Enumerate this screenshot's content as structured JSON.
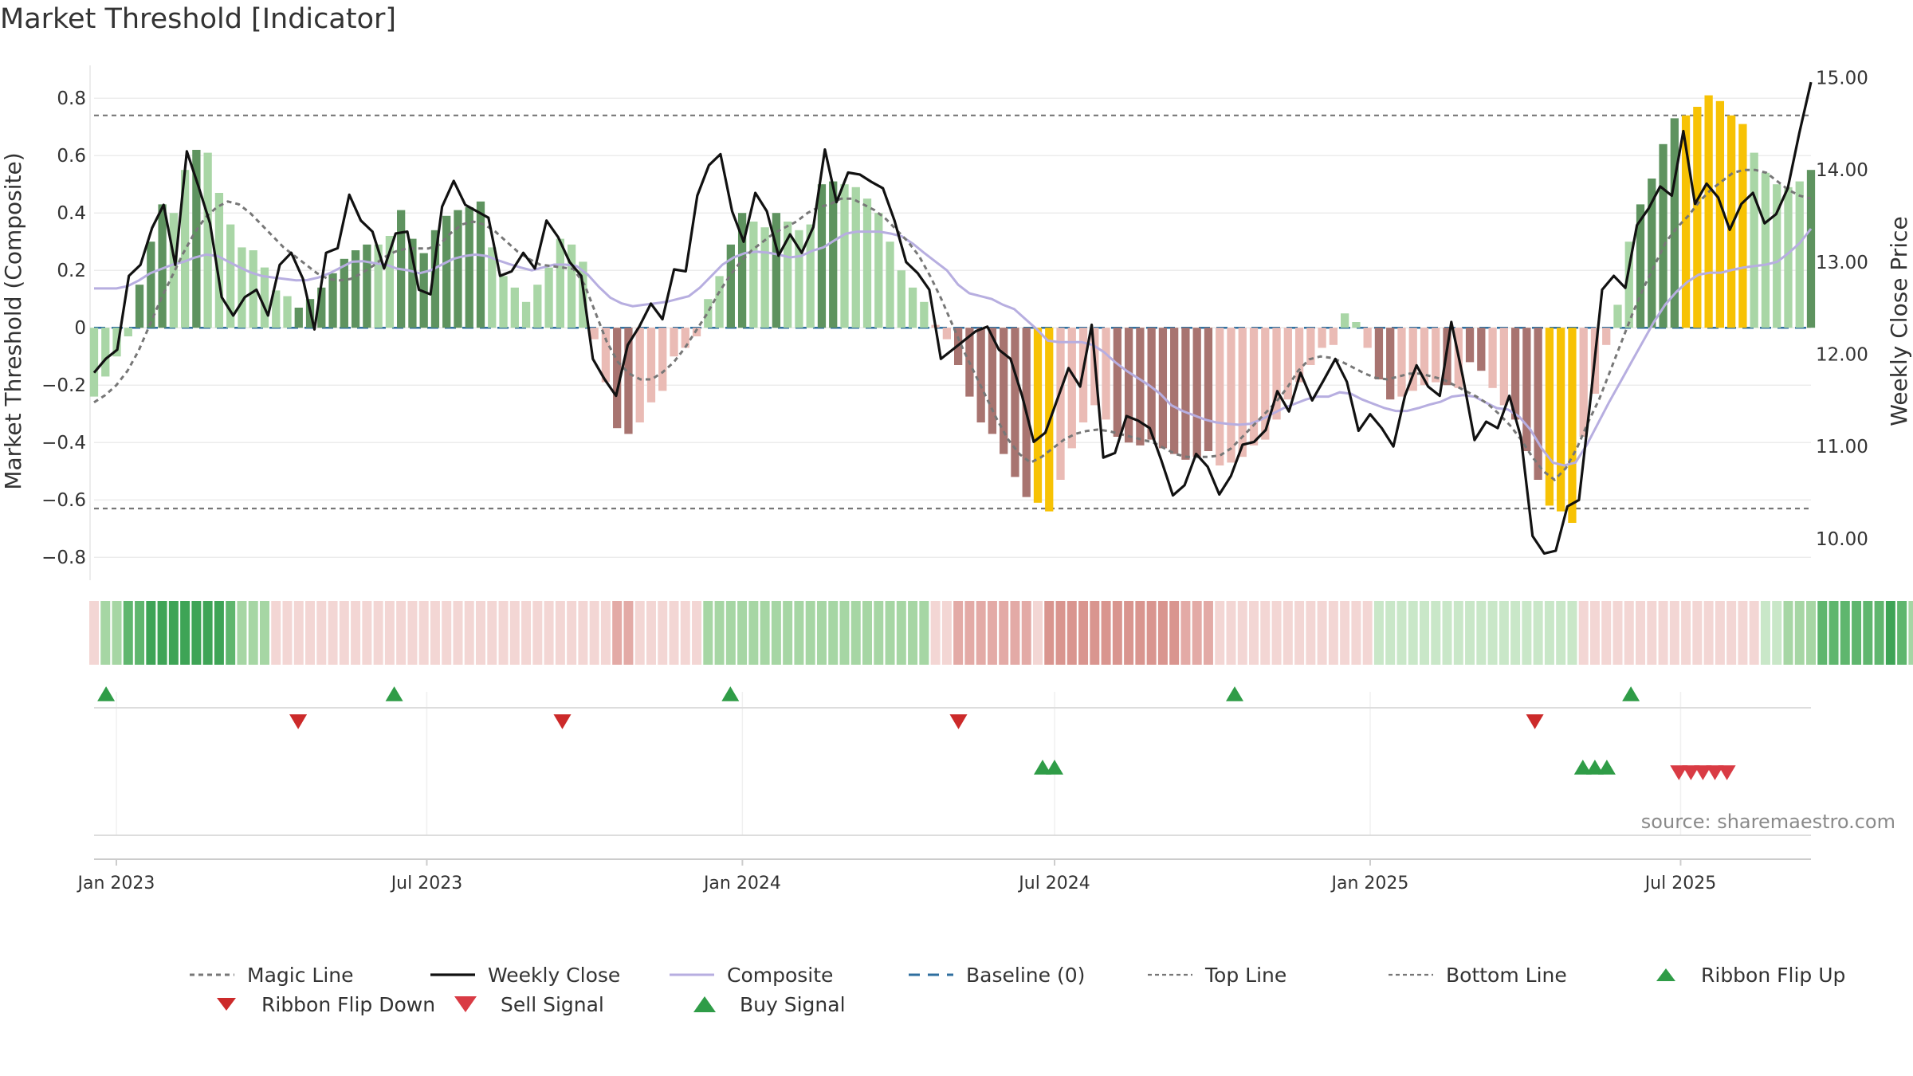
{
  "title": "Market Threshold [Indicator]",
  "source_label": "source: sharemaestro.com",
  "legend": [
    {
      "key": "magic",
      "label": "Magic Line"
    },
    {
      "key": "close",
      "label": "Weekly Close"
    },
    {
      "key": "composite",
      "label": "Composite"
    },
    {
      "key": "baseline",
      "label": "Baseline (0)"
    },
    {
      "key": "top",
      "label": "Top Line"
    },
    {
      "key": "bottom",
      "label": "Bottom Line"
    },
    {
      "key": "flip_up",
      "label": "Ribbon Flip Up"
    },
    {
      "key": "flip_down",
      "label": "Ribbon Flip Down"
    },
    {
      "key": "sell",
      "label": "Sell Signal"
    },
    {
      "key": "buy",
      "label": "Buy Signal"
    }
  ],
  "colors": {
    "magic": "#777777",
    "close": "#111111",
    "composite": "#b7aee0",
    "baseline": "#2f6f9f",
    "threshold": "#777777",
    "pos_strong": "#5e935f",
    "pos_light": "#a9d6a6",
    "neg_strong": "#a87470",
    "neg_light": "#eabbb5",
    "extreme": "#f7c204",
    "flip_up": "#2f9c47",
    "flip_down": "#cc2a2a",
    "buy": "#2f9c47",
    "sell": "#d93b44",
    "ribbon_green_dark": "#47a85e",
    "ribbon_green_light": "#c9e7c8",
    "ribbon_red_dark": "#d58e8a",
    "ribbon_red_light": "#f3d6d4"
  },
  "chart_data": {
    "type": "bar",
    "title": "Market Threshold [Indicator]",
    "ylabel": "Market Threshold (Composite)",
    "y2label": "Weekly Close Price",
    "xlabel": "",
    "ylim": [
      -0.88,
      0.92
    ],
    "y2lim": [
      9.55,
      15.15
    ],
    "yticks": [
      0.8,
      0.6,
      0.4,
      0.2,
      0,
      -0.2,
      -0.4,
      -0.6,
      -0.8
    ],
    "ytick_labels": [
      "0.8",
      "0.6",
      "0.4",
      "0.2",
      "0",
      "−0.2",
      "−0.4",
      "−0.6",
      "−0.8"
    ],
    "y2ticks": [
      15,
      14,
      13,
      12,
      11,
      10
    ],
    "y2tick_labels": [
      "15.00",
      "14.00",
      "13.00",
      "12.00",
      "11.00",
      "10.00"
    ],
    "x_start": "2022-12-19",
    "x_end": "2025-09-15",
    "xtick_dates": [
      "2023-01-01",
      "2023-07-01",
      "2024-01-01",
      "2024-07-01",
      "2025-01-01",
      "2025-07-01"
    ],
    "xtick_labels": [
      "Jan 2023",
      "Jul 2023",
      "Jan 2024",
      "Jul 2024",
      "Jan 2025",
      "Jul 2025"
    ],
    "grid": true,
    "legend_position": "bottom",
    "top_line": 0.74,
    "bottom_line": -0.63,
    "baseline": 0,
    "composite_bars": [
      -0.24,
      -0.17,
      -0.1,
      -0.03,
      0.15,
      0.3,
      0.43,
      0.4,
      0.55,
      0.62,
      0.61,
      0.47,
      0.36,
      0.28,
      0.27,
      0.21,
      0.13,
      0.11,
      0.07,
      0.1,
      0.14,
      0.19,
      0.24,
      0.27,
      0.29,
      0.29,
      0.32,
      0.41,
      0.31,
      0.26,
      0.34,
      0.39,
      0.41,
      0.42,
      0.44,
      0.28,
      0.18,
      0.14,
      0.09,
      0.15,
      0.21,
      0.31,
      0.29,
      0.23,
      -0.04,
      -0.19,
      -0.35,
      -0.37,
      -0.33,
      -0.26,
      -0.22,
      -0.1,
      -0.07,
      -0.03,
      0.1,
      0.18,
      0.29,
      0.4,
      0.37,
      0.35,
      0.4,
      0.37,
      0.34,
      0.36,
      0.5,
      0.51,
      0.5,
      0.49,
      0.45,
      0.4,
      0.3,
      0.2,
      0.14,
      0.09,
      0.01,
      -0.04,
      -0.13,
      -0.24,
      -0.33,
      -0.37,
      -0.44,
      -0.52,
      -0.59,
      -0.61,
      -0.64,
      -0.53,
      -0.42,
      -0.33,
      -0.27,
      -0.32,
      -0.38,
      -0.4,
      -0.41,
      -0.39,
      -0.42,
      -0.44,
      -0.46,
      -0.45,
      -0.43,
      -0.48,
      -0.47,
      -0.45,
      -0.41,
      -0.39,
      -0.32,
      -0.25,
      -0.19,
      -0.13,
      -0.07,
      -0.06,
      0.05,
      0.02,
      -0.07,
      -0.18,
      -0.25,
      -0.24,
      -0.22,
      -0.2,
      -0.19,
      -0.2,
      -0.21,
      -0.12,
      -0.15,
      -0.21,
      -0.27,
      -0.32,
      -0.43,
      -0.53,
      -0.62,
      -0.64,
      -0.68,
      -0.38,
      -0.23,
      -0.06,
      0.08,
      0.3,
      0.43,
      0.52,
      0.64,
      0.73,
      0.74,
      0.77,
      0.81,
      0.79,
      0.74,
      0.71,
      0.61,
      0.54,
      0.5,
      0.49,
      0.51,
      0.55
    ],
    "bar_categories": [
      "pl",
      "pl",
      "pl",
      "pl",
      "pd",
      "pd",
      "pd",
      "pl",
      "pl",
      "pd",
      "pl",
      "pl",
      "pl",
      "pl",
      "pl",
      "pl",
      "pl",
      "pl",
      "pd",
      "pd",
      "pd",
      "pd",
      "pd",
      "pd",
      "pd",
      "pl",
      "pl",
      "pd",
      "pd",
      "pd",
      "pd",
      "pd",
      "pd",
      "pd",
      "pd",
      "pl",
      "pl",
      "pl",
      "pl",
      "pl",
      "pl",
      "pl",
      "pl",
      "pl",
      "nl",
      "nl",
      "nd",
      "nd",
      "nl",
      "nl",
      "nl",
      "nl",
      "nl",
      "nl",
      "pl",
      "pl",
      "pd",
      "pd",
      "pl",
      "pl",
      "pd",
      "pl",
      "pl",
      "pl",
      "pd",
      "pd",
      "pl",
      "pl",
      "pl",
      "pl",
      "pl",
      "pl",
      "pl",
      "pl",
      "nl",
      "nl",
      "nd",
      "nd",
      "nd",
      "nd",
      "nd",
      "nd",
      "nd",
      "ex",
      "ex",
      "nl",
      "nl",
      "nl",
      "nl",
      "nl",
      "nd",
      "nd",
      "nd",
      "nd",
      "nd",
      "nd",
      "nd",
      "nd",
      "nd",
      "nl",
      "nl",
      "nl",
      "nl",
      "nl",
      "nl",
      "nl",
      "nl",
      "nl",
      "nl",
      "nl",
      "pl",
      "pl",
      "nl",
      "nd",
      "nd",
      "nl",
      "nl",
      "nl",
      "nl",
      "nd",
      "nl",
      "nd",
      "nd",
      "nl",
      "nl",
      "nd",
      "nd",
      "nd",
      "ex",
      "ex",
      "ex",
      "nl",
      "nl",
      "nl",
      "pl",
      "pl",
      "pd",
      "pd",
      "pd",
      "pd",
      "ex",
      "ex",
      "ex",
      "ex",
      "ex",
      "ex",
      "pl",
      "pl",
      "pl",
      "pl",
      "pl",
      "pd",
      "pd"
    ],
    "weekly_close": [
      11.8,
      11.95,
      12.05,
      12.85,
      12.97,
      13.37,
      13.62,
      12.97,
      14.2,
      13.82,
      13.42,
      12.62,
      12.42,
      12.62,
      12.7,
      12.42,
      12.97,
      13.1,
      12.82,
      12.27,
      13.1,
      13.15,
      13.73,
      13.45,
      13.33,
      12.93,
      13.31,
      13.33,
      12.7,
      12.65,
      13.6,
      13.88,
      13.62,
      13.55,
      13.48,
      12.85,
      12.9,
      13.1,
      12.93,
      13.45,
      13.27,
      13.0,
      12.85,
      11.95,
      11.73,
      11.55,
      12.1,
      12.3,
      12.55,
      12.38,
      12.92,
      12.9,
      13.72,
      14.05,
      14.17,
      13.55,
      13.22,
      13.75,
      13.55,
      13.07,
      13.3,
      13.1,
      13.38,
      14.22,
      13.65,
      13.97,
      13.95,
      13.87,
      13.8,
      13.45,
      13.0,
      12.88,
      12.7,
      11.95,
      12.05,
      12.15,
      12.25,
      12.3,
      12.05,
      11.95,
      11.55,
      11.05,
      11.15,
      11.5,
      11.85,
      11.65,
      12.32,
      10.88,
      10.93,
      11.33,
      11.28,
      11.2,
      10.85,
      10.47,
      10.58,
      10.92,
      10.78,
      10.48,
      10.68,
      11.02,
      11.05,
      11.18,
      11.6,
      11.38,
      11.8,
      11.5,
      11.72,
      11.95,
      11.7,
      11.17,
      11.35,
      11.2,
      11.0,
      11.55,
      11.88,
      11.65,
      11.55,
      12.35,
      11.75,
      11.07,
      11.27,
      11.2,
      11.55,
      11.1,
      10.03,
      9.84,
      9.87,
      10.35,
      10.42,
      11.52,
      12.7,
      12.85,
      12.72,
      13.4,
      13.58,
      13.82,
      13.72,
      14.42,
      13.63,
      13.85,
      13.7,
      13.35,
      13.63,
      13.75,
      13.42,
      13.52,
      13.8,
      14.4,
      14.95
    ],
    "composite_line": [
      0.137,
      0.137,
      0.137,
      0.145,
      0.165,
      0.19,
      0.205,
      0.22,
      0.23,
      0.245,
      0.255,
      0.25,
      0.23,
      0.21,
      0.192,
      0.18,
      0.175,
      0.17,
      0.165,
      0.166,
      0.175,
      0.19,
      0.21,
      0.23,
      0.232,
      0.225,
      0.22,
      0.206,
      0.2,
      0.19,
      0.2,
      0.22,
      0.24,
      0.25,
      0.255,
      0.25,
      0.235,
      0.222,
      0.21,
      0.2,
      0.21,
      0.22,
      0.22,
      0.215,
      0.185,
      0.142,
      0.105,
      0.085,
      0.075,
      0.08,
      0.085,
      0.09,
      0.1,
      0.11,
      0.14,
      0.18,
      0.22,
      0.245,
      0.26,
      0.265,
      0.262,
      0.255,
      0.245,
      0.25,
      0.268,
      0.28,
      0.305,
      0.328,
      0.335,
      0.335,
      0.335,
      0.328,
      0.318,
      0.292,
      0.26,
      0.23,
      0.2,
      0.15,
      0.12,
      0.11,
      0.1,
      0.08,
      0.065,
      0.03,
      -0.005,
      -0.045,
      -0.05,
      -0.05,
      -0.05,
      -0.06,
      -0.085,
      -0.12,
      -0.15,
      -0.175,
      -0.2,
      -0.23,
      -0.27,
      -0.29,
      -0.305,
      -0.32,
      -0.33,
      -0.335,
      -0.338,
      -0.335,
      -0.32,
      -0.3,
      -0.28,
      -0.265,
      -0.25,
      -0.24,
      -0.24,
      -0.225,
      -0.23,
      -0.25,
      -0.265,
      -0.28,
      -0.29,
      -0.29,
      -0.28,
      -0.268,
      -0.258,
      -0.24,
      -0.235,
      -0.24,
      -0.26,
      -0.28,
      -0.285,
      -0.31,
      -0.355,
      -0.42,
      -0.47,
      -0.48,
      -0.47,
      -0.41,
      -0.335,
      -0.26,
      -0.19,
      -0.12,
      -0.05,
      0.02,
      0.08,
      0.125,
      0.16,
      0.185,
      0.192,
      0.192,
      0.202,
      0.21,
      0.215,
      0.22,
      0.23,
      0.26,
      0.295,
      0.345
    ],
    "magic_line": [
      -0.26,
      -0.235,
      -0.2,
      -0.15,
      -0.08,
      0.01,
      0.1,
      0.18,
      0.26,
      0.33,
      0.385,
      0.42,
      0.44,
      0.43,
      0.4,
      0.36,
      0.32,
      0.28,
      0.25,
      0.22,
      0.19,
      0.17,
      0.165,
      0.17,
      0.19,
      0.215,
      0.245,
      0.265,
      0.276,
      0.276,
      0.276,
      0.29,
      0.33,
      0.36,
      0.37,
      0.36,
      0.335,
      0.3,
      0.265,
      0.24,
      0.22,
      0.215,
      0.21,
      0.205,
      0.15,
      0.05,
      -0.05,
      -0.12,
      -0.16,
      -0.18,
      -0.18,
      -0.155,
      -0.12,
      -0.07,
      -0.01,
      0.05,
      0.12,
      0.18,
      0.23,
      0.27,
      0.3,
      0.33,
      0.35,
      0.37,
      0.4,
      0.42,
      0.43,
      0.45,
      0.45,
      0.43,
      0.41,
      0.38,
      0.34,
      0.3,
      0.25,
      0.18,
      0.1,
      0.01,
      -0.08,
      -0.16,
      -0.24,
      -0.32,
      -0.39,
      -0.44,
      -0.47,
      -0.45,
      -0.42,
      -0.39,
      -0.37,
      -0.36,
      -0.355,
      -0.36,
      -0.37,
      -0.38,
      -0.39,
      -0.4,
      -0.42,
      -0.44,
      -0.45,
      -0.45,
      -0.45,
      -0.445,
      -0.42,
      -0.38,
      -0.34,
      -0.3,
      -0.26,
      -0.21,
      -0.15,
      -0.11,
      -0.1,
      -0.105,
      -0.12,
      -0.14,
      -0.16,
      -0.175,
      -0.18,
      -0.17,
      -0.16,
      -0.16,
      -0.17,
      -0.18,
      -0.2,
      -0.22,
      -0.24,
      -0.265,
      -0.3,
      -0.34,
      -0.39,
      -0.45,
      -0.5,
      -0.53,
      -0.49,
      -0.42,
      -0.33,
      -0.25,
      -0.15,
      -0.05,
      0.05,
      0.14,
      0.22,
      0.3,
      0.35,
      0.39,
      0.44,
      0.48,
      0.51,
      0.54,
      0.55,
      0.55,
      0.54,
      0.51,
      0.48,
      0.46,
      0.45
    ],
    "ribbon_levels": [
      -1,
      2,
      2,
      3,
      3,
      4,
      4,
      4,
      4,
      4,
      4,
      4,
      3,
      2,
      2,
      2,
      -1,
      -1,
      -1,
      -1,
      -1,
      -1,
      -1,
      -1,
      -1,
      -1,
      -1,
      -1,
      -1,
      -1,
      -1,
      -1,
      -1,
      -1,
      -1,
      -1,
      -1,
      -1,
      -1,
      -1,
      -1,
      -1,
      -1,
      -1,
      -1,
      -1,
      -1,
      -1,
      -1,
      -1,
      -1,
      -1,
      -1,
      -1,
      2,
      2,
      2,
      2,
      2,
      2,
      2,
      2,
      2,
      2,
      2,
      2,
      2,
      2,
      2,
      2,
      2,
      2,
      2,
      2,
      -1,
      -1,
      -1,
      -1,
      -1,
      -1,
      -1,
      -1,
      -1,
      -1,
      -2,
      -2,
      -2,
      -2,
      -2,
      -2,
      -2,
      -2,
      -2,
      -2,
      -2,
      -2,
      -1,
      -1,
      -1,
      -1,
      -1,
      -1,
      -1,
      -1,
      -1,
      -1,
      -1,
      -1,
      -1,
      -1,
      -1,
      -1,
      -1,
      1,
      1,
      1,
      1,
      1,
      1,
      1,
      1,
      1,
      1,
      1,
      1,
      1,
      1,
      1,
      1,
      1,
      1,
      -1,
      -1,
      -1,
      -1,
      -1,
      -1,
      -1,
      -1,
      -1,
      -1,
      -1,
      -1,
      -1,
      -1,
      -1,
      -1,
      1,
      1,
      2,
      2,
      2,
      3,
      3,
      3,
      3,
      3,
      3,
      4,
      3,
      2,
      1,
      1,
      1,
      1,
      1,
      1,
      1,
      1
    ],
    "ribbon_flip_up_dates": [
      "2022-12-26",
      "2023-06-12",
      "2023-12-25",
      "2024-10-14",
      "2025-06-02"
    ],
    "ribbon_flip_down_dates": [
      "2023-04-17",
      "2023-09-18",
      "2024-05-06",
      "2025-04-07"
    ],
    "buy_signal_dates": [
      "2024-06-24",
      "2024-07-01",
      "2025-05-05",
      "2025-05-12",
      "2025-05-19"
    ],
    "sell_signal_dates": [
      "2025-06-30",
      "2025-07-07",
      "2025-07-14",
      "2025-07-21",
      "2025-07-28"
    ]
  }
}
